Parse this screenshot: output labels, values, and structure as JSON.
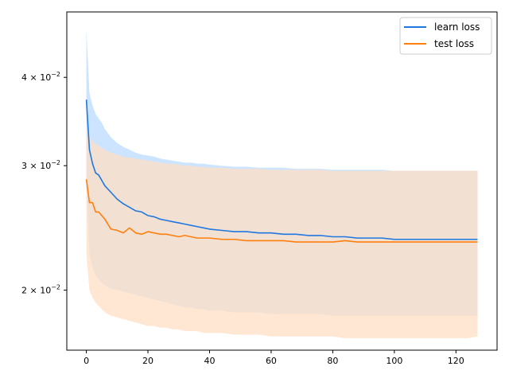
{
  "chart_data": {
    "type": "line",
    "title": "",
    "xlabel": "",
    "ylabel": "",
    "yscale": "log",
    "xlim": [
      -6.35,
      133.35
    ],
    "ylim": [
      0.01645,
      0.0495
    ],
    "grid": false,
    "legend_position": "top-right",
    "x_ticks": [
      0,
      20,
      40,
      60,
      80,
      100,
      120
    ],
    "x_tick_labels": [
      "0",
      "20",
      "40",
      "60",
      "80",
      "100",
      "120"
    ],
    "y_ticks": [
      0.02,
      0.03,
      0.04
    ],
    "y_tick_label_mantissas": [
      "2 × 10",
      "3 × 10",
      "4 × 10"
    ],
    "y_tick_label_exponent": "−2",
    "x": [
      0,
      1,
      2,
      3,
      4,
      5,
      6,
      8,
      10,
      12,
      14,
      16,
      18,
      20,
      22,
      24,
      26,
      28,
      30,
      32,
      34,
      36,
      38,
      40,
      44,
      48,
      52,
      56,
      60,
      64,
      68,
      72,
      76,
      80,
      84,
      88,
      92,
      96,
      100,
      104,
      108,
      112,
      116,
      120,
      124,
      127
    ],
    "series": [
      {
        "name": "learn loss",
        "color": "#1f77e0",
        "band_color": "#cce4ff",
        "values": [
          0.0372,
          0.0316,
          0.0302,
          0.0293,
          0.0291,
          0.0286,
          0.0281,
          0.0275,
          0.0269,
          0.0265,
          0.0262,
          0.0259,
          0.0258,
          0.0255,
          0.0254,
          0.0252,
          0.0251,
          0.025,
          0.0249,
          0.0248,
          0.0247,
          0.0246,
          0.0245,
          0.0244,
          0.0243,
          0.0242,
          0.0242,
          0.0241,
          0.0241,
          0.024,
          0.024,
          0.0239,
          0.0239,
          0.0238,
          0.0238,
          0.0237,
          0.0237,
          0.0237,
          0.0236,
          0.0236,
          0.0236,
          0.0236,
          0.0236,
          0.0236,
          0.0236,
          0.0236
        ],
        "band_upper": [
          0.0468,
          0.038,
          0.0365,
          0.0355,
          0.035,
          0.0345,
          0.0338,
          0.0329,
          0.0323,
          0.0319,
          0.0316,
          0.0313,
          0.0311,
          0.031,
          0.0309,
          0.0307,
          0.0306,
          0.0305,
          0.0304,
          0.0303,
          0.0303,
          0.0302,
          0.0302,
          0.0301,
          0.03,
          0.0299,
          0.0299,
          0.0298,
          0.0298,
          0.0298,
          0.0297,
          0.0297,
          0.0297,
          0.0296,
          0.0296,
          0.0296,
          0.0296,
          0.0296,
          0.0295,
          0.0295,
          0.0295,
          0.0295,
          0.0295,
          0.0295,
          0.0295,
          0.0295
        ],
        "band_lower": [
          0.028,
          0.0225,
          0.0215,
          0.021,
          0.0207,
          0.0205,
          0.0203,
          0.0201,
          0.02,
          0.0199,
          0.0198,
          0.0197,
          0.0196,
          0.0195,
          0.0194,
          0.0193,
          0.0192,
          0.0191,
          0.019,
          0.0189,
          0.0189,
          0.0188,
          0.0188,
          0.0187,
          0.0187,
          0.0186,
          0.0186,
          0.0186,
          0.0185,
          0.0185,
          0.0185,
          0.0185,
          0.0185,
          0.0184,
          0.0184,
          0.0184,
          0.0184,
          0.0184,
          0.0184,
          0.0184,
          0.0184,
          0.0184,
          0.0184,
          0.0184,
          0.0184,
          0.0184
        ]
      },
      {
        "name": "test loss",
        "color": "#ff7f0e",
        "band_color": "#ffdfc4",
        "values": [
          0.0287,
          0.0266,
          0.0266,
          0.0258,
          0.0258,
          0.0255,
          0.0252,
          0.0244,
          0.0243,
          0.0241,
          0.0245,
          0.0241,
          0.024,
          0.0242,
          0.0241,
          0.024,
          0.024,
          0.0239,
          0.0238,
          0.0239,
          0.0238,
          0.0237,
          0.0237,
          0.0237,
          0.0236,
          0.0236,
          0.0235,
          0.0235,
          0.0235,
          0.0235,
          0.0234,
          0.0234,
          0.0234,
          0.0234,
          0.0235,
          0.0234,
          0.0234,
          0.0234,
          0.0234,
          0.0234,
          0.0234,
          0.0234,
          0.0234,
          0.0234,
          0.0234,
          0.0234
        ],
        "band_upper": [
          0.034,
          0.033,
          0.0325,
          0.0322,
          0.032,
          0.0318,
          0.0316,
          0.0313,
          0.0311,
          0.0309,
          0.0308,
          0.0307,
          0.0306,
          0.0305,
          0.0304,
          0.0303,
          0.0302,
          0.0302,
          0.0301,
          0.03,
          0.03,
          0.0299,
          0.0299,
          0.0298,
          0.0298,
          0.0297,
          0.0297,
          0.0297,
          0.0296,
          0.0296,
          0.0296,
          0.0296,
          0.0296,
          0.0295,
          0.0295,
          0.0295,
          0.0295,
          0.0295,
          0.0295,
          0.0295,
          0.0295,
          0.0295,
          0.0295,
          0.0295,
          0.0295,
          0.0295
        ],
        "band_lower": [
          0.0225,
          0.02,
          0.0195,
          0.0192,
          0.019,
          0.0188,
          0.0186,
          0.0184,
          0.0183,
          0.0182,
          0.0181,
          0.018,
          0.0179,
          0.0178,
          0.0178,
          0.0177,
          0.0177,
          0.0176,
          0.0176,
          0.0175,
          0.0175,
          0.0175,
          0.0174,
          0.0174,
          0.0174,
          0.0173,
          0.0173,
          0.0173,
          0.0172,
          0.0172,
          0.0172,
          0.0172,
          0.0172,
          0.0172,
          0.0171,
          0.0171,
          0.0171,
          0.0171,
          0.0171,
          0.0171,
          0.0171,
          0.0171,
          0.0171,
          0.0171,
          0.0171,
          0.0172
        ]
      }
    ]
  }
}
